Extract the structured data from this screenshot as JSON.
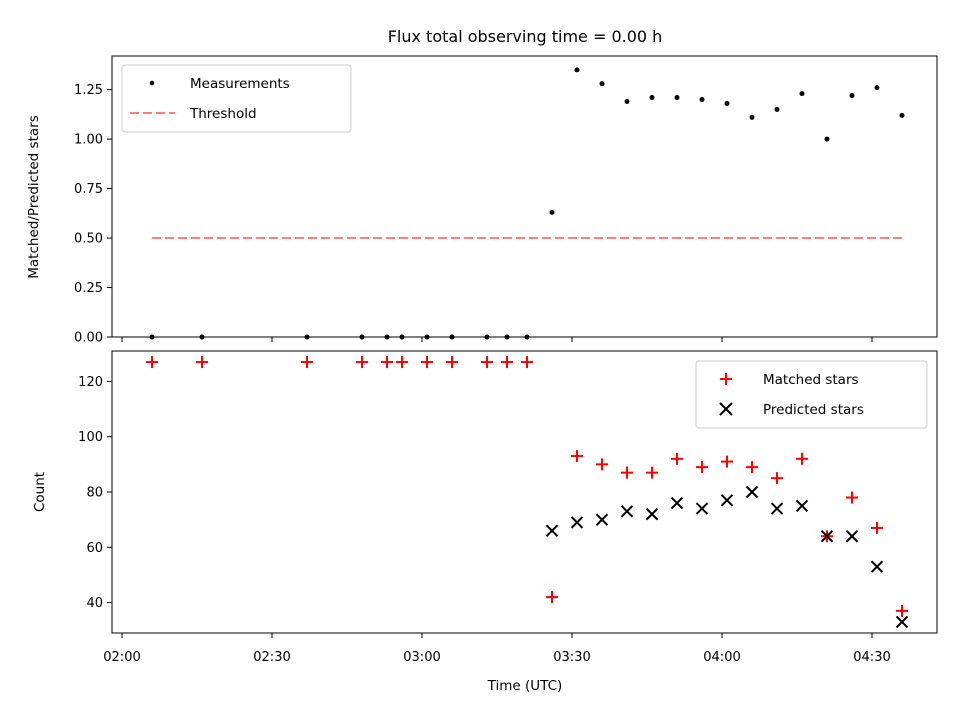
{
  "chart_data": [
    {
      "type": "scatter",
      "title": "Flux total observing time = 0.00 h",
      "xlabel": "",
      "ylabel": "Matched/Predicted stars",
      "ylim": [
        0.0,
        1.42
      ],
      "yticks": [
        0.0,
        0.25,
        0.5,
        0.75,
        1.0,
        1.25
      ],
      "ytick_labels": [
        "0.00",
        "0.25",
        "0.50",
        "0.75",
        "1.00",
        "1.25"
      ],
      "legend_position": "top-left",
      "series": [
        {
          "name": "Measurements",
          "color": "#000000",
          "marker": "dot",
          "x": [
            "02:06",
            "02:16",
            "02:37",
            "02:48",
            "02:53",
            "02:56",
            "03:01",
            "03:06",
            "03:13",
            "03:17",
            "03:21",
            "03:26",
            "03:31",
            "03:36",
            "03:41",
            "03:46",
            "03:51",
            "03:56",
            "04:01",
            "04:06",
            "04:11",
            "04:16",
            "04:21",
            "04:26",
            "04:31",
            "04:36"
          ],
          "y": [
            0.0,
            0.0,
            0.0,
            0.0,
            0.0,
            0.0,
            0.0,
            0.0,
            0.0,
            0.0,
            0.0,
            0.63,
            1.35,
            1.28,
            1.19,
            1.21,
            1.21,
            1.2,
            1.18,
            1.11,
            1.15,
            1.23,
            1.0,
            1.22,
            1.26,
            1.12
          ]
        },
        {
          "name": "Threshold",
          "color": "#ff7f7f",
          "line_style": "dashed",
          "x": [
            "02:06",
            "04:36"
          ],
          "y": [
            0.5,
            0.5
          ]
        }
      ]
    },
    {
      "type": "scatter",
      "title": "",
      "xlabel": "Time (UTC)",
      "ylabel": "Count",
      "ylim": [
        29,
        131
      ],
      "yticks": [
        40,
        60,
        80,
        100,
        120
      ],
      "ytick_labels": [
        "40",
        "60",
        "80",
        "100",
        "120"
      ],
      "xticks": [
        "02:00",
        "02:30",
        "03:00",
        "03:30",
        "04:00",
        "04:30"
      ],
      "xtick_labels": [
        "02:00",
        "02:30",
        "03:00",
        "03:30",
        "04:00",
        "04:30"
      ],
      "xlim": [
        "01:58",
        "04:43"
      ],
      "legend_position": "top-right",
      "series": [
        {
          "name": "Matched stars",
          "color": "#ff0000",
          "marker": "plus",
          "x": [
            "02:06",
            "02:16",
            "02:37",
            "02:48",
            "02:53",
            "02:56",
            "03:01",
            "03:06",
            "03:13",
            "03:17",
            "03:21",
            "03:26",
            "03:31",
            "03:36",
            "03:41",
            "03:46",
            "03:51",
            "03:56",
            "04:01",
            "04:06",
            "04:11",
            "04:16",
            "04:21",
            "04:26",
            "04:31",
            "04:36"
          ],
          "y": [
            127,
            127,
            127,
            127,
            127,
            127,
            127,
            127,
            127,
            127,
            127,
            42,
            93,
            90,
            87,
            87,
            92,
            89,
            91,
            89,
            85,
            92,
            64,
            78,
            67,
            37
          ]
        },
        {
          "name": "Predicted stars",
          "color": "#000000",
          "marker": "x",
          "x": [
            "03:26",
            "03:31",
            "03:36",
            "03:41",
            "03:46",
            "03:51",
            "03:56",
            "04:01",
            "04:06",
            "04:11",
            "04:16",
            "04:21",
            "04:26",
            "04:31",
            "04:36"
          ],
          "y": [
            66,
            69,
            70,
            73,
            72,
            76,
            74,
            77,
            80,
            74,
            75,
            64,
            64,
            53,
            33
          ]
        }
      ]
    }
  ]
}
